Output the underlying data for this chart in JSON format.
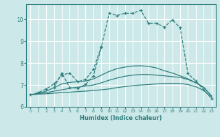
{
  "xlabel": "Humidex (Indice chaleur)",
  "bg_color": "#cce8e8",
  "grid_color": "#ffffff",
  "line_color": "#2e7d7d",
  "xlim": [
    -0.5,
    23.5
  ],
  "ylim": [
    6.0,
    10.7
  ],
  "xticks": [
    0,
    1,
    2,
    3,
    4,
    5,
    6,
    7,
    8,
    9,
    10,
    11,
    12,
    13,
    14,
    15,
    16,
    17,
    18,
    19,
    20,
    21,
    22,
    23
  ],
  "yticks": [
    6,
    7,
    8,
    9,
    10
  ],
  "series": [
    {
      "x": [
        0,
        1,
        2,
        3,
        4,
        5,
        6,
        7,
        8,
        9,
        10,
        11,
        12,
        13,
        14,
        15,
        16,
        17,
        18,
        19,
        20,
        21,
        22,
        23
      ],
      "y": [
        6.55,
        6.58,
        6.6,
        6.63,
        6.65,
        6.67,
        6.7,
        6.72,
        6.75,
        6.78,
        6.82,
        6.88,
        6.93,
        6.97,
        7.0,
        7.02,
        7.05,
        7.07,
        7.08,
        7.07,
        7.02,
        6.92,
        6.75,
        6.42
      ],
      "marker": null,
      "linestyle": "-",
      "lw": 0.9
    },
    {
      "x": [
        0,
        1,
        2,
        3,
        4,
        5,
        6,
        7,
        8,
        9,
        10,
        11,
        12,
        13,
        14,
        15,
        16,
        17,
        18,
        19,
        20,
        21,
        22,
        23
      ],
      "y": [
        6.55,
        6.6,
        6.65,
        6.72,
        6.78,
        6.85,
        6.9,
        6.95,
        7.0,
        7.1,
        7.22,
        7.32,
        7.4,
        7.45,
        7.48,
        7.48,
        7.45,
        7.42,
        7.38,
        7.35,
        7.25,
        7.1,
        6.9,
        6.48
      ],
      "marker": null,
      "linestyle": "-",
      "lw": 0.9
    },
    {
      "x": [
        0,
        1,
        2,
        3,
        4,
        5,
        6,
        7,
        8,
        9,
        10,
        11,
        12,
        13,
        14,
        15,
        16,
        17,
        18,
        19,
        20,
        21,
        22,
        23
      ],
      "y": [
        6.55,
        6.62,
        6.72,
        6.88,
        7.05,
        7.12,
        7.15,
        7.18,
        7.28,
        7.45,
        7.62,
        7.75,
        7.82,
        7.87,
        7.88,
        7.85,
        7.78,
        7.65,
        7.55,
        7.42,
        7.28,
        7.1,
        6.88,
        6.5
      ],
      "marker": null,
      "linestyle": "-",
      "lw": 0.9
    },
    {
      "x": [
        0,
        1,
        2,
        3,
        4,
        5,
        6,
        7,
        8,
        9,
        10,
        11,
        12,
        13,
        14,
        15,
        16,
        17,
        18,
        19,
        20,
        21,
        22,
        23
      ],
      "y": [
        6.55,
        6.65,
        6.82,
        7.05,
        7.45,
        7.55,
        7.15,
        7.25,
        7.72,
        8.75,
        10.28,
        10.18,
        10.28,
        10.28,
        10.42,
        9.82,
        9.82,
        9.65,
        9.98,
        9.62,
        7.52,
        7.18,
        6.78,
        6.38
      ],
      "marker": "+",
      "linestyle": "--",
      "lw": 0.9
    },
    {
      "x": [
        3,
        4,
        5,
        6,
        7,
        8,
        9
      ],
      "y": [
        6.88,
        7.55,
        6.88,
        6.85,
        7.02,
        7.42,
        8.72
      ],
      "marker": "+",
      "linestyle": "--",
      "lw": 0.9
    }
  ]
}
